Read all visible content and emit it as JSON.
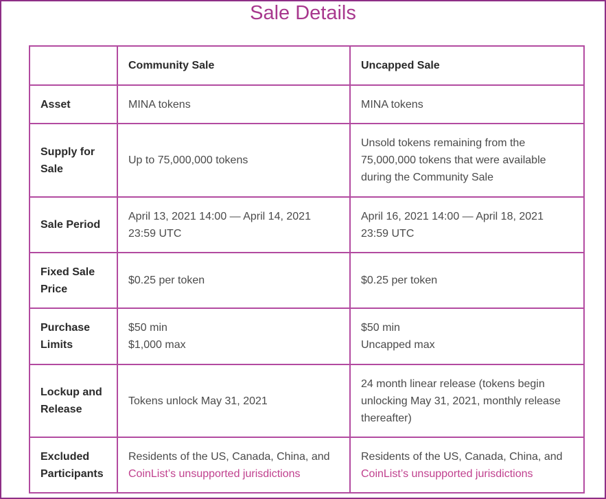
{
  "header": {
    "title": "Sale Details"
  },
  "table": {
    "columns": [
      "Community Sale",
      "Uncapped Sale"
    ],
    "rows": [
      {
        "label": "Asset",
        "cells": [
          "MINA tokens",
          "MINA tokens"
        ]
      },
      {
        "label": "Supply for Sale",
        "cells": [
          "Up to 75,000,000 tokens",
          "Unsold tokens remaining from the 75,000,000 tokens that were available during the Community Sale"
        ]
      },
      {
        "label": "Sale Period",
        "cells": [
          "April 13, 2021 14:00 — April 14, 2021 23:59 UTC",
          "April 16, 2021 14:00 — April 18, 2021 23:59 UTC"
        ]
      },
      {
        "label": "Fixed Sale Price",
        "cells": [
          "$0.25 per token",
          "$0.25 per token"
        ]
      },
      {
        "label": "Purchase Limits",
        "cells": [
          [
            "$50 min",
            "$1,000 max"
          ],
          [
            "$50 min",
            "Uncapped max"
          ]
        ]
      },
      {
        "label": "Lockup and Release",
        "cells": [
          "Tokens unlock May 31, 2021",
          "24 month linear release (tokens begin unlocking May 31, 2021, monthly release thereafter)"
        ]
      },
      {
        "label": "Excluded Participants",
        "cells": [
          {
            "text": "Residents of the US, Canada, China, and",
            "link": "CoinList’s unsupported jurisdictions"
          },
          {
            "text": "Residents of the US, Canada, China, and",
            "link": "CoinList’s unsupported jurisdictions"
          }
        ]
      }
    ]
  }
}
